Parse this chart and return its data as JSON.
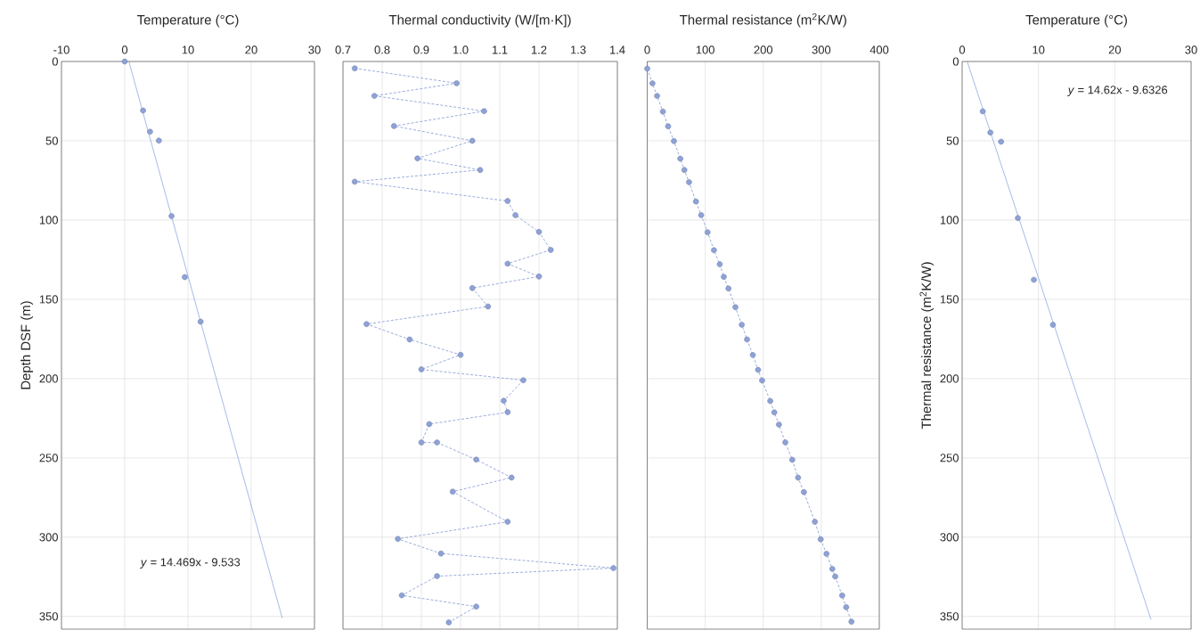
{
  "chart_data": [
    {
      "type": "scatter",
      "xlabel": "Temperature (°C)",
      "ylabel": "Depth DSF (m)",
      "xlim": [
        -10,
        30
      ],
      "ylim": [
        358,
        0
      ],
      "xticks": [
        -10,
        0,
        10,
        20,
        30
      ],
      "yticks": [
        0,
        50,
        100,
        150,
        200,
        250,
        300,
        350
      ],
      "grid": true,
      "annotations": [
        "*y* = 14.469x  - 9.533"
      ],
      "series": [
        {
          "marker": "circle",
          "color": "#8ea2d8",
          "x": [
            0,
            2.9,
            4.0,
            5.4,
            7.4,
            9.5,
            12.0
          ],
          "values": [
            0,
            30.9,
            44.3,
            49.9,
            97.5,
            136,
            164.1
          ]
        },
        {
          "type": "line",
          "marker": "none",
          "line_style": "solid",
          "color": "#6a8ad6",
          "x": [
            0.66,
            24.9
          ],
          "values": [
            0,
            351
          ]
        }
      ]
    },
    {
      "type": "line",
      "xlabel": "Thermal conductivity (W/[m·K])",
      "xlim": [
        0.7,
        1.4
      ],
      "ylim": [
        358,
        0
      ],
      "xticks": [
        0.7,
        0.8,
        0.9,
        {
          "value": 1,
          "label": "1.0"
        },
        1.1,
        1.2,
        1.3,
        1.4
      ],
      "yticks": [
        0,
        50,
        100,
        150,
        200,
        250,
        300,
        350
      ],
      "tick_labels": "x",
      "grid": true,
      "series": [
        {
          "marker": "circle",
          "line_style": "dashed",
          "color": "#8ea2d8",
          "x": [
            0.73,
            0.99,
            0.78,
            1.06,
            0.83,
            1.03,
            0.89,
            1.05,
            0.73,
            1.12,
            1.14,
            1.2,
            1.23,
            1.12,
            1.2,
            1.03,
            1.07,
            0.76,
            0.87,
            1.0,
            0.9,
            1.16,
            1.11,
            1.12,
            0.92,
            0.9,
            0.94,
            1.04,
            1.13,
            0.98,
            1.12,
            0.84,
            0.95,
            1.39,
            0.94,
            0.85,
            1.04,
            0.97
          ],
          "values": [
            4.3,
            13.7,
            21.7,
            31.3,
            40.7,
            50,
            61.1,
            68.4,
            75.8,
            88,
            96.9,
            107.5,
            118.8,
            127.5,
            135.6,
            142.9,
            154.5,
            165.6,
            175.3,
            185,
            194.2,
            201,
            214,
            221.2,
            228.7,
            240.3,
            240.3,
            251.1,
            262.4,
            271.3,
            290.3,
            301.1,
            310.3,
            319.5,
            324.6,
            336.7,
            343.8,
            353.8
          ]
        }
      ]
    },
    {
      "type": "line",
      "xlabel": "Thermal resistance (m$^{2}$K/W)",
      "xlim": [
        0,
        400
      ],
      "ylim": [
        358,
        0
      ],
      "xticks": [
        0,
        100,
        200,
        300,
        400
      ],
      "yticks": [
        0,
        50,
        100,
        150,
        200,
        250,
        300,
        350
      ],
      "tick_labels": "x",
      "grid": true,
      "series": [
        {
          "marker": "circle",
          "line_style": "dashed",
          "color": "#8ea2d8",
          "x": [
            0,
            9,
            17,
            27,
            36,
            46,
            57,
            64,
            72,
            84,
            93,
            104,
            115,
            125,
            132,
            140,
            152,
            163,
            172,
            182,
            191,
            198,
            212,
            219,
            227,
            238,
            250,
            260,
            270,
            289,
            299,
            309,
            319,
            324,
            336,
            343,
            352
          ],
          "values": [
            4.5,
            13.8,
            21.7,
            31.6,
            40.9,
            50.2,
            61.3,
            68.4,
            76.1,
            88.3,
            96.9,
            107.7,
            119,
            127.9,
            135.8,
            143.2,
            155,
            166,
            175.3,
            185.1,
            194.5,
            201.2,
            214.1,
            221.3,
            229,
            240.2,
            251.2,
            262.5,
            271.6,
            290.3,
            301.4,
            310.5,
            320,
            324.8,
            336.8,
            344.2,
            353.3
          ]
        }
      ]
    },
    {
      "type": "scatter",
      "xlabel": "Temperature (°C)",
      "ylabel": "Thermal resistance (m$^{2}$K/W)",
      "xlim": [
        0,
        30
      ],
      "ylim": [
        358,
        0
      ],
      "xticks": [
        0,
        10,
        20,
        30
      ],
      "yticks": [
        0,
        50,
        100,
        150,
        200,
        250,
        300,
        350
      ],
      "grid": true,
      "annotations": [
        "*y* = 14.62x  - 9.6326"
      ],
      "series": [
        {
          "marker": "circle",
          "color": "#8ea2d8",
          "x": [
            2.7,
            3.7,
            5.1,
            7.3,
            9.4,
            11.9
          ],
          "values": [
            31.4,
            44.8,
            50.6,
            98.7,
            137.7,
            166.1
          ]
        },
        {
          "type": "line",
          "marker": "none",
          "line_style": "solid",
          "color": "#6a8ad6",
          "x": [
            0.66,
            24.75
          ],
          "values": [
            0,
            352
          ]
        }
      ]
    }
  ]
}
